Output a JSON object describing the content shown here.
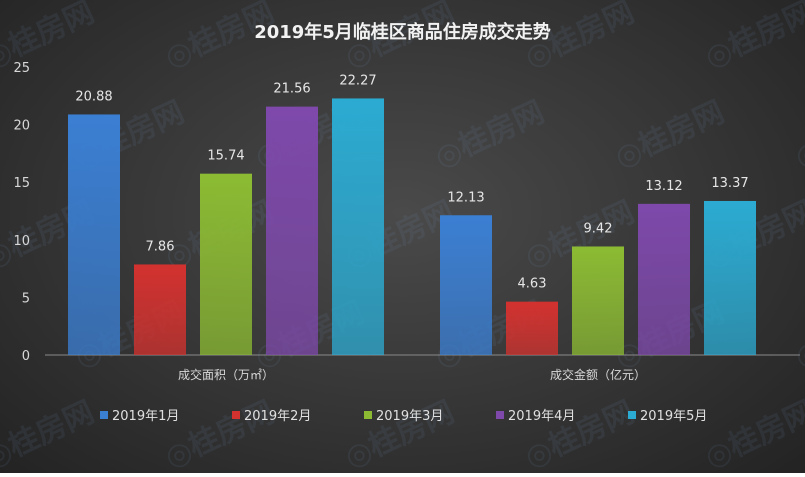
{
  "chart_data": {
    "type": "bar",
    "title": "2019年5月临桂区商品住房成交走势",
    "categories": [
      "成交面积（万㎡）",
      "成交金额（亿元）"
    ],
    "series": [
      {
        "name": "2019年1月",
        "values": [
          20.88,
          12.13
        ],
        "color": "#3b7fd3"
      },
      {
        "name": "2019年2月",
        "values": [
          7.86,
          4.63
        ],
        "color": "#d3322f"
      },
      {
        "name": "2019年3月",
        "values": [
          15.74,
          9.42
        ],
        "color": "#8cbb33"
      },
      {
        "name": "2019年4月",
        "values": [
          21.56,
          13.12
        ],
        "color": "#7e49ab"
      },
      {
        "name": "2019年5月",
        "values": [
          22.27,
          13.37
        ],
        "color": "#2cabd2"
      }
    ],
    "yticks": [
      "0",
      "5",
      "10",
      "15",
      "20",
      "25"
    ],
    "ylim": [
      0,
      25
    ],
    "grid": false,
    "legend": "bottom"
  },
  "watermark": "桂房网 GUIFUN.COM"
}
